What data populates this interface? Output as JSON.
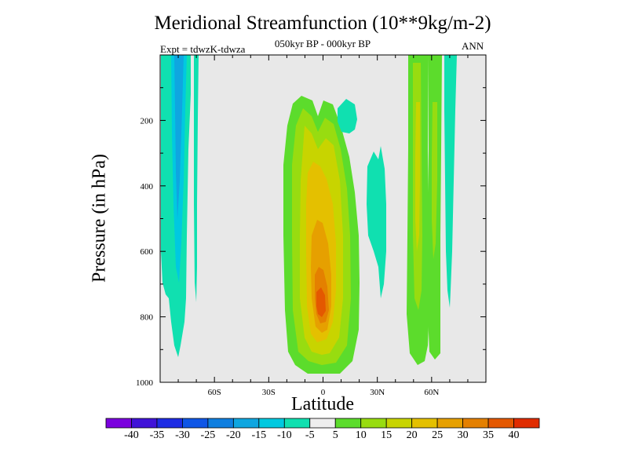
{
  "chart_data": {
    "type": "heatmap",
    "title": "Meridional Streamfunction (10**9kg/m-2)",
    "subtitle": "050kyr BP - 000kyr BP",
    "experiment": "Expt = tdwzK-tdwza",
    "season": "ANN",
    "xlabel": "Latitude",
    "ylabel": "Pressure (in hPa)",
    "x_axis": {
      "range": [
        -90,
        90
      ],
      "ticks": [
        {
          "value": -60,
          "label": "60S"
        },
        {
          "value": -30,
          "label": "30S"
        },
        {
          "value": 0,
          "label": "0"
        },
        {
          "value": 30,
          "label": "30N"
        },
        {
          "value": 60,
          "label": "60N"
        }
      ]
    },
    "y_axis": {
      "range": [
        0,
        1000
      ],
      "inverted": true,
      "ticks": [
        {
          "value": 200,
          "label": "200"
        },
        {
          "value": 400,
          "label": "400"
        },
        {
          "value": 600,
          "label": "600"
        },
        {
          "value": 800,
          "label": "800"
        },
        {
          "value": 1000,
          "label": "1000"
        }
      ]
    },
    "colorbar": {
      "labels": [
        "-40",
        "-35",
        "-30",
        "-25",
        "-20",
        "-15",
        "-10",
        "-5",
        "5",
        "10",
        "15",
        "20",
        "25",
        "30",
        "35",
        "40"
      ],
      "colors": [
        "#7b00de",
        "#4013d8",
        "#1e2ce4",
        "#0f56e6",
        "#0f7fe0",
        "#0fa6e0",
        "#00c9e0",
        "#10e0b0",
        "#eeeeee",
        "#5cdc2c",
        "#98dc10",
        "#c8d400",
        "#e4c000",
        "#e6a000",
        "#e48000",
        "#e45800",
        "#e02c00"
      ]
    },
    "background_color": "#e8e8e8",
    "field": {
      "description_levels": "contour fill levels in 10**9 kg/s",
      "regions": [
        {
          "name": "SH high-latitude negative cell",
          "lat": [
            -86,
            -72
          ],
          "p": [
            0,
            930
          ],
          "min": -20
        },
        {
          "name": "SH narrow negative cell",
          "lat": [
            -69,
            -67
          ],
          "p": [
            0,
            760
          ],
          "min": -10
        },
        {
          "name": "Tropical positive cell",
          "lat": [
            -18,
            16
          ],
          "p": [
            125,
            975
          ],
          "max": 35
        },
        {
          "name": "NH subtropical negative patches",
          "lat": [
            8,
            29
          ],
          "p": [
            130,
            770
          ],
          "min": -10
        },
        {
          "name": "NH mid-latitude positive cell",
          "lat": [
            47,
            54
          ],
          "p": [
            0,
            940
          ],
          "max": 20
        },
        {
          "name": "NH mid-latitude positive cell 2",
          "lat": [
            54,
            62
          ],
          "p": [
            0,
            920
          ],
          "max": 10
        },
        {
          "name": "NH high-latitude negative cell",
          "lat": [
            63,
            71
          ],
          "p": [
            0,
            850
          ],
          "min": -10
        }
      ]
    }
  }
}
